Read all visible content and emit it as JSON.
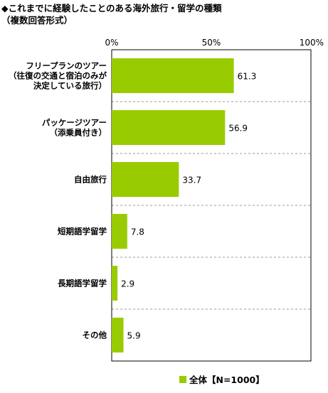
{
  "title": "◆これまでに経験したことのある海外旅行・留学の種類",
  "subtitle": "（複数回答形式）",
  "colors": {
    "bar": "#99cc00",
    "grid": "#999999",
    "axis": "#000000"
  },
  "chart_data": {
    "type": "bar",
    "orientation": "horizontal",
    "title": "◆これまでに経験したことのある海外旅行・留学の種類",
    "subtitle": "（複数回答形式）",
    "xlabel": "",
    "ylabel": "",
    "xlim": [
      0,
      100
    ],
    "ticks": [
      "0%",
      "50%",
      "100%"
    ],
    "categories": [
      [
        "フリープランのツアー",
        "（往復の交通と宿泊のみが",
        "決定している旅行）"
      ],
      [
        "パッケージツアー",
        "（添乗員付き）"
      ],
      [
        "自由旅行"
      ],
      [
        "短期語学留学"
      ],
      [
        "長期語学留学"
      ],
      [
        "その他"
      ]
    ],
    "series": [
      {
        "name": "全体【N=1000】",
        "values": [
          61.3,
          56.9,
          33.7,
          7.8,
          2.9,
          5.9
        ]
      }
    ],
    "value_labels": [
      "61.3",
      "56.9",
      "33.7",
      "7.8",
      "2.9",
      "5.9"
    ],
    "grid": true,
    "legend": "bottom"
  },
  "legend_label": "全体【N=1000】"
}
